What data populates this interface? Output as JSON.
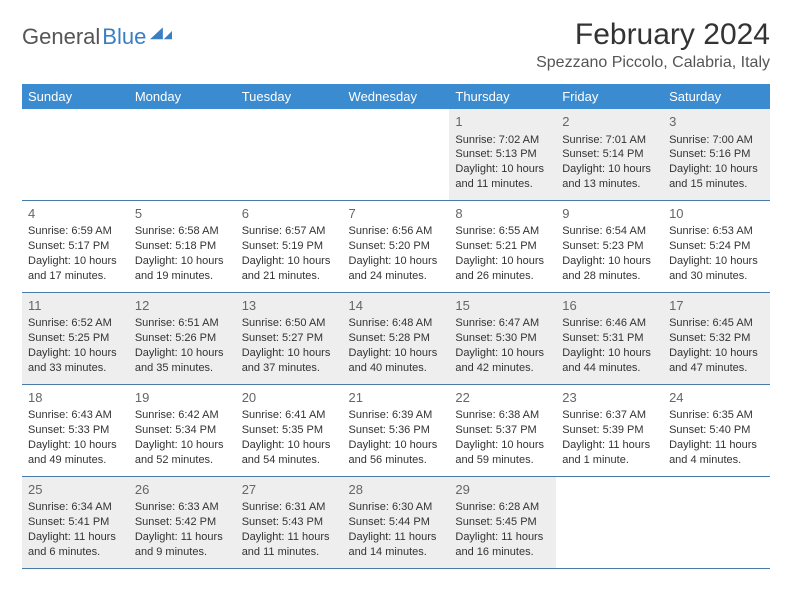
{
  "brand": {
    "name1": "General",
    "name2": "Blue"
  },
  "title": "February 2024",
  "location": "Spezzano Piccolo, Calabria, Italy",
  "colors": {
    "header_bg": "#3a8bd0",
    "header_text": "#ffffff",
    "border": "#4a7ba8",
    "shade": "#eeeeee",
    "text": "#333333",
    "brand_blue": "#3a7fc4"
  },
  "dayNames": [
    "Sunday",
    "Monday",
    "Tuesday",
    "Wednesday",
    "Thursday",
    "Friday",
    "Saturday"
  ],
  "weeks": [
    [
      null,
      null,
      null,
      null,
      {
        "n": "1",
        "sr": "Sunrise: 7:02 AM",
        "ss": "Sunset: 5:13 PM",
        "dl": "Daylight: 10 hours and 11 minutes."
      },
      {
        "n": "2",
        "sr": "Sunrise: 7:01 AM",
        "ss": "Sunset: 5:14 PM",
        "dl": "Daylight: 10 hours and 13 minutes."
      },
      {
        "n": "3",
        "sr": "Sunrise: 7:00 AM",
        "ss": "Sunset: 5:16 PM",
        "dl": "Daylight: 10 hours and 15 minutes."
      }
    ],
    [
      {
        "n": "4",
        "sr": "Sunrise: 6:59 AM",
        "ss": "Sunset: 5:17 PM",
        "dl": "Daylight: 10 hours and 17 minutes."
      },
      {
        "n": "5",
        "sr": "Sunrise: 6:58 AM",
        "ss": "Sunset: 5:18 PM",
        "dl": "Daylight: 10 hours and 19 minutes."
      },
      {
        "n": "6",
        "sr": "Sunrise: 6:57 AM",
        "ss": "Sunset: 5:19 PM",
        "dl": "Daylight: 10 hours and 21 minutes."
      },
      {
        "n": "7",
        "sr": "Sunrise: 6:56 AM",
        "ss": "Sunset: 5:20 PM",
        "dl": "Daylight: 10 hours and 24 minutes."
      },
      {
        "n": "8",
        "sr": "Sunrise: 6:55 AM",
        "ss": "Sunset: 5:21 PM",
        "dl": "Daylight: 10 hours and 26 minutes."
      },
      {
        "n": "9",
        "sr": "Sunrise: 6:54 AM",
        "ss": "Sunset: 5:23 PM",
        "dl": "Daylight: 10 hours and 28 minutes."
      },
      {
        "n": "10",
        "sr": "Sunrise: 6:53 AM",
        "ss": "Sunset: 5:24 PM",
        "dl": "Daylight: 10 hours and 30 minutes."
      }
    ],
    [
      {
        "n": "11",
        "sr": "Sunrise: 6:52 AM",
        "ss": "Sunset: 5:25 PM",
        "dl": "Daylight: 10 hours and 33 minutes."
      },
      {
        "n": "12",
        "sr": "Sunrise: 6:51 AM",
        "ss": "Sunset: 5:26 PM",
        "dl": "Daylight: 10 hours and 35 minutes."
      },
      {
        "n": "13",
        "sr": "Sunrise: 6:50 AM",
        "ss": "Sunset: 5:27 PM",
        "dl": "Daylight: 10 hours and 37 minutes."
      },
      {
        "n": "14",
        "sr": "Sunrise: 6:48 AM",
        "ss": "Sunset: 5:28 PM",
        "dl": "Daylight: 10 hours and 40 minutes."
      },
      {
        "n": "15",
        "sr": "Sunrise: 6:47 AM",
        "ss": "Sunset: 5:30 PM",
        "dl": "Daylight: 10 hours and 42 minutes."
      },
      {
        "n": "16",
        "sr": "Sunrise: 6:46 AM",
        "ss": "Sunset: 5:31 PM",
        "dl": "Daylight: 10 hours and 44 minutes."
      },
      {
        "n": "17",
        "sr": "Sunrise: 6:45 AM",
        "ss": "Sunset: 5:32 PM",
        "dl": "Daylight: 10 hours and 47 minutes."
      }
    ],
    [
      {
        "n": "18",
        "sr": "Sunrise: 6:43 AM",
        "ss": "Sunset: 5:33 PM",
        "dl": "Daylight: 10 hours and 49 minutes."
      },
      {
        "n": "19",
        "sr": "Sunrise: 6:42 AM",
        "ss": "Sunset: 5:34 PM",
        "dl": "Daylight: 10 hours and 52 minutes."
      },
      {
        "n": "20",
        "sr": "Sunrise: 6:41 AM",
        "ss": "Sunset: 5:35 PM",
        "dl": "Daylight: 10 hours and 54 minutes."
      },
      {
        "n": "21",
        "sr": "Sunrise: 6:39 AM",
        "ss": "Sunset: 5:36 PM",
        "dl": "Daylight: 10 hours and 56 minutes."
      },
      {
        "n": "22",
        "sr": "Sunrise: 6:38 AM",
        "ss": "Sunset: 5:37 PM",
        "dl": "Daylight: 10 hours and 59 minutes."
      },
      {
        "n": "23",
        "sr": "Sunrise: 6:37 AM",
        "ss": "Sunset: 5:39 PM",
        "dl": "Daylight: 11 hours and 1 minute."
      },
      {
        "n": "24",
        "sr": "Sunrise: 6:35 AM",
        "ss": "Sunset: 5:40 PM",
        "dl": "Daylight: 11 hours and 4 minutes."
      }
    ],
    [
      {
        "n": "25",
        "sr": "Sunrise: 6:34 AM",
        "ss": "Sunset: 5:41 PM",
        "dl": "Daylight: 11 hours and 6 minutes."
      },
      {
        "n": "26",
        "sr": "Sunrise: 6:33 AM",
        "ss": "Sunset: 5:42 PM",
        "dl": "Daylight: 11 hours and 9 minutes."
      },
      {
        "n": "27",
        "sr": "Sunrise: 6:31 AM",
        "ss": "Sunset: 5:43 PM",
        "dl": "Daylight: 11 hours and 11 minutes."
      },
      {
        "n": "28",
        "sr": "Sunrise: 6:30 AM",
        "ss": "Sunset: 5:44 PM",
        "dl": "Daylight: 11 hours and 14 minutes."
      },
      {
        "n": "29",
        "sr": "Sunrise: 6:28 AM",
        "ss": "Sunset: 5:45 PM",
        "dl": "Daylight: 11 hours and 16 minutes."
      },
      null,
      null
    ]
  ]
}
